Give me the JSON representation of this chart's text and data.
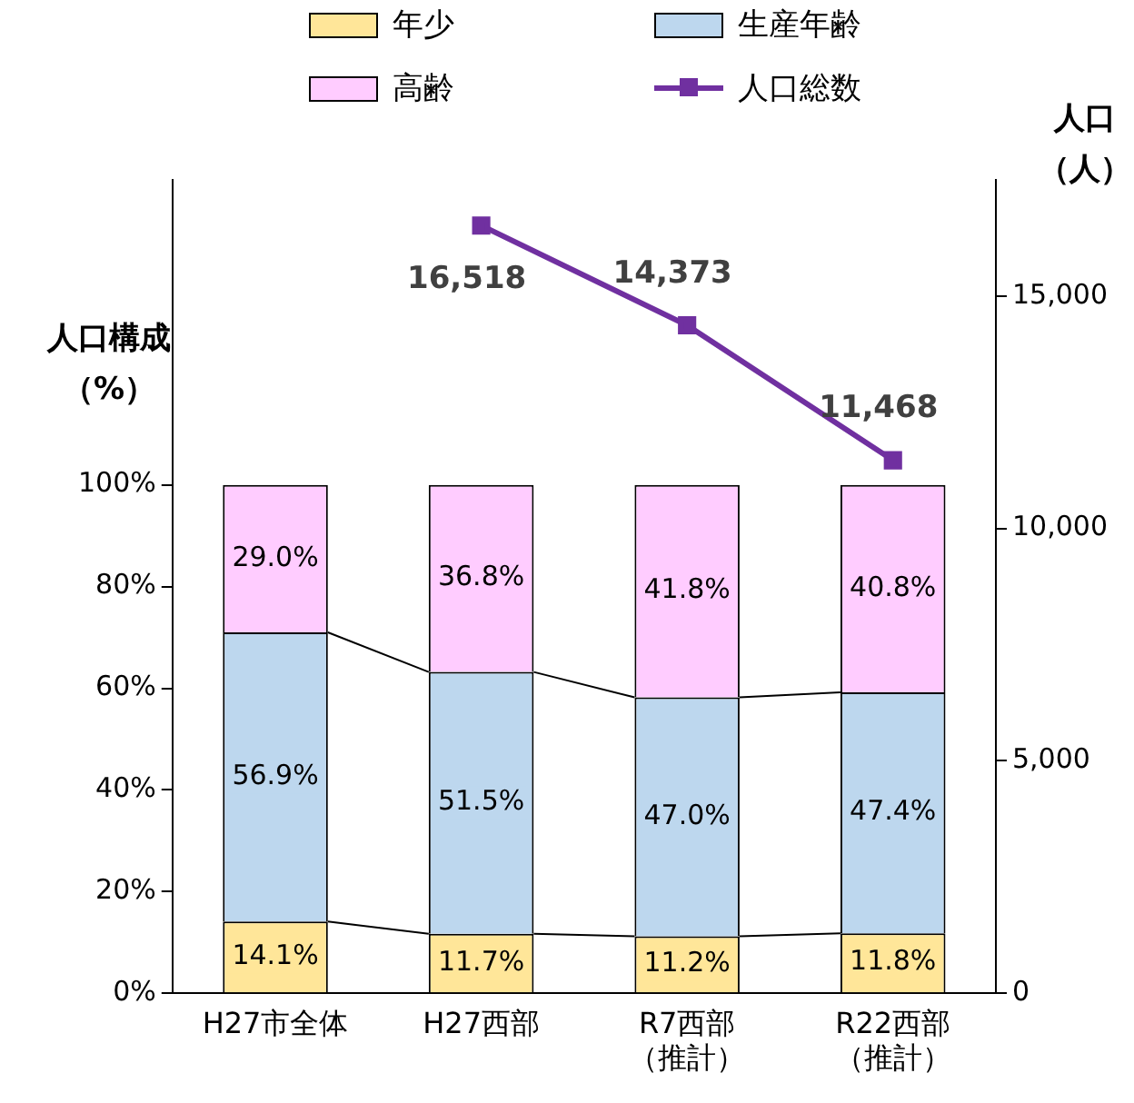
{
  "chart_data": {
    "type": "bar",
    "stacked": true,
    "categories": [
      "H27市全体",
      "H27西部",
      "R7西部（推計）",
      "R22西部（推計）"
    ],
    "ylabel": "人口構成（%）",
    "y2label": "人口（人）",
    "ylim": [
      0,
      160
    ],
    "yticks": [
      {
        "value": 0,
        "label": "0%"
      },
      {
        "value": 20,
        "label": "20%"
      },
      {
        "value": 40,
        "label": "40%"
      },
      {
        "value": 60,
        "label": "60%"
      },
      {
        "value": 80,
        "label": "80%"
      },
      {
        "value": 100,
        "label": "100%"
      }
    ],
    "y2lim": [
      0,
      17500
    ],
    "y2ticks": [
      {
        "value": 0,
        "label": "0"
      },
      {
        "value": 5000,
        "label": "5,000"
      },
      {
        "value": 10000,
        "label": "10,000"
      },
      {
        "value": 15000,
        "label": "15,000"
      }
    ],
    "legend": "top",
    "grid": false,
    "series": [
      {
        "name": "年少",
        "color": "#ffe699",
        "values": [
          14.1,
          11.7,
          11.2,
          11.8
        ],
        "value_labels": [
          "14.1%",
          "11.7%",
          "11.2%",
          "11.8%"
        ]
      },
      {
        "name": "生産年齢",
        "color": "#bdd7ee",
        "values": [
          56.9,
          51.5,
          47.0,
          47.4
        ],
        "value_labels": [
          "56.9%",
          "51.5%",
          "47.0%",
          "47.4%"
        ]
      },
      {
        "name": "高齢",
        "color": "#ffccff",
        "values": [
          29.0,
          36.8,
          41.8,
          40.8
        ],
        "value_labels": [
          "29.0%",
          "36.8%",
          "41.8%",
          "40.8%"
        ]
      },
      {
        "name": "人口総数",
        "type": "line",
        "axis": "y2",
        "color": "#7030a0",
        "marker": "square",
        "values": [
          null,
          16518,
          14373,
          11468
        ],
        "value_labels": [
          null,
          "16,518",
          "14,373",
          "11,468"
        ]
      }
    ]
  }
}
